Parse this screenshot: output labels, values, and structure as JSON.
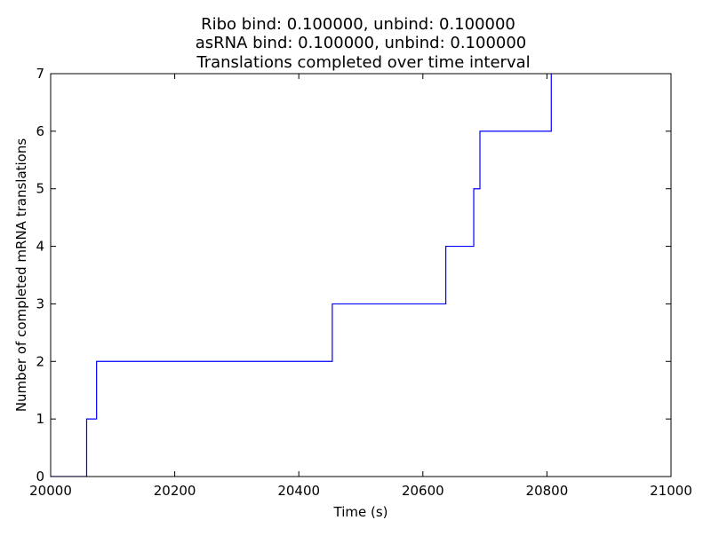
{
  "chart_data": {
    "type": "line",
    "step": "post",
    "title_lines": [
      "Ribo bind: 0.100000, unbind: 0.100000",
      "asRNA bind: 0.100000, unbind: 0.100000",
      "Translations completed over time interval"
    ],
    "xlabel": "Time (s)",
    "ylabel": "Number of completed mRNA translations",
    "xlim": [
      20000,
      21000
    ],
    "ylim": [
      0,
      7
    ],
    "xticks": [
      20000,
      20200,
      20400,
      20600,
      20800,
      21000
    ],
    "yticks": [
      0,
      1,
      2,
      3,
      4,
      5,
      6,
      7
    ],
    "grid": false,
    "line_color": "#0000ff",
    "x": [
      20000,
      20058,
      20074,
      20254,
      20454,
      20637,
      20682,
      20692,
      20807
    ],
    "y": [
      0,
      1,
      2,
      2,
      3,
      4,
      5,
      6,
      7
    ]
  }
}
